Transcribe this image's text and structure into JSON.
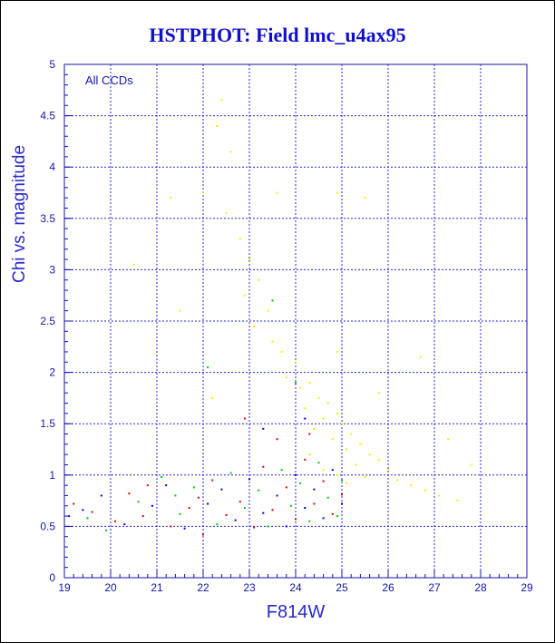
{
  "chart_data": {
    "type": "scatter",
    "title": "HSTPHOT: Field lmc_u4ax95",
    "xlabel": "F814W",
    "ylabel": "Chi vs. magnitude",
    "annotation": "All CCDs",
    "xlim": [
      19,
      29
    ],
    "ylim": [
      0,
      5
    ],
    "xticks": [
      "19",
      "20",
      "21",
      "22",
      "23",
      "24",
      "25",
      "26",
      "27",
      "28",
      "29"
    ],
    "yticks": [
      "0",
      "0.5",
      "1",
      "1.5",
      "2",
      "2.5",
      "3",
      "3.5",
      "4",
      "4.5",
      "5"
    ],
    "grid": true,
    "colors": {
      "ccd-red": "#e00000",
      "ccd-green": "#00cc00",
      "ccd-blue": "#0000dd",
      "ccd-yellow": "#f2f200"
    },
    "series": [
      {
        "color": "ccd-red",
        "points": [
          [
            19.2,
            0.72
          ],
          [
            19.6,
            0.64
          ],
          [
            20.1,
            0.55
          ],
          [
            20.4,
            0.82
          ],
          [
            20.8,
            0.9
          ],
          [
            21.3,
            0.5
          ],
          [
            21.7,
            0.68
          ],
          [
            22.0,
            0.42
          ],
          [
            22.2,
            0.95
          ],
          [
            22.5,
            0.61
          ],
          [
            22.8,
            0.74
          ],
          [
            23.1,
            0.49
          ],
          [
            23.3,
            1.08
          ],
          [
            23.5,
            0.66
          ],
          [
            23.8,
            0.88
          ],
          [
            24.0,
            0.57
          ],
          [
            24.2,
            1.15
          ],
          [
            24.4,
            0.72
          ],
          [
            24.6,
            0.94
          ],
          [
            24.8,
            0.62
          ],
          [
            25.0,
            0.81
          ],
          [
            22.9,
            1.55
          ],
          [
            23.6,
            1.35
          ],
          [
            24.3,
            1.4
          ],
          [
            21.9,
            0.78
          ],
          [
            20.7,
            0.6
          ]
        ]
      },
      {
        "color": "ccd-green",
        "points": [
          [
            19.5,
            0.58
          ],
          [
            19.9,
            0.46
          ],
          [
            20.6,
            0.74
          ],
          [
            21.1,
            0.98
          ],
          [
            21.5,
            0.62
          ],
          [
            21.8,
            0.88
          ],
          [
            22.3,
            0.52
          ],
          [
            22.6,
            1.02
          ],
          [
            22.9,
            0.68
          ],
          [
            23.2,
            0.85
          ],
          [
            23.4,
            0.5
          ],
          [
            23.7,
            1.05
          ],
          [
            23.9,
            0.7
          ],
          [
            24.1,
            0.92
          ],
          [
            24.3,
            0.55
          ],
          [
            24.5,
            1.12
          ],
          [
            24.7,
            0.78
          ],
          [
            24.9,
            0.6
          ],
          [
            25.0,
            0.95
          ],
          [
            23.5,
            2.7
          ],
          [
            22.1,
            2.05
          ],
          [
            24.0,
            1.9
          ],
          [
            21.4,
            0.8
          ]
        ]
      },
      {
        "color": "ccd-blue",
        "points": [
          [
            19.4,
            0.66
          ],
          [
            19.8,
            0.8
          ],
          [
            20.3,
            0.52
          ],
          [
            20.9,
            0.7
          ],
          [
            21.2,
            0.9
          ],
          [
            21.6,
            0.48
          ],
          [
            22.1,
            0.72
          ],
          [
            22.4,
            0.86
          ],
          [
            22.7,
            0.56
          ],
          [
            23.0,
            0.96
          ],
          [
            23.3,
            0.63
          ],
          [
            23.6,
            0.8
          ],
          [
            23.8,
            0.5
          ],
          [
            24.0,
            1.0
          ],
          [
            24.2,
            0.68
          ],
          [
            24.4,
            0.86
          ],
          [
            24.6,
            0.58
          ],
          [
            24.8,
            1.05
          ],
          [
            25.0,
            0.72
          ],
          [
            24.2,
            1.55
          ],
          [
            23.3,
            1.45
          ],
          [
            19.1,
            0.6
          ]
        ]
      },
      {
        "color": "ccd-yellow",
        "points": [
          [
            22.4,
            4.65
          ],
          [
            22.3,
            4.4
          ],
          [
            22.6,
            4.15
          ],
          [
            21.3,
            3.7
          ],
          [
            22.0,
            3.75
          ],
          [
            23.6,
            3.75
          ],
          [
            22.5,
            3.55
          ],
          [
            22.8,
            3.3
          ],
          [
            23.0,
            3.1
          ],
          [
            23.2,
            2.9
          ],
          [
            22.9,
            2.75
          ],
          [
            23.4,
            2.6
          ],
          [
            23.1,
            2.45
          ],
          [
            23.5,
            2.3
          ],
          [
            23.7,
            2.2
          ],
          [
            24.0,
            2.1
          ],
          [
            23.8,
            1.95
          ],
          [
            24.3,
            1.9
          ],
          [
            24.1,
            1.85
          ],
          [
            24.5,
            1.75
          ],
          [
            24.2,
            1.65
          ],
          [
            24.7,
            1.7
          ],
          [
            24.6,
            1.55
          ],
          [
            24.9,
            1.6
          ],
          [
            24.4,
            1.45
          ],
          [
            25.0,
            1.5
          ],
          [
            24.8,
            1.35
          ],
          [
            25.2,
            1.4
          ],
          [
            25.4,
            1.3
          ],
          [
            25.1,
            1.25
          ],
          [
            25.6,
            1.2
          ],
          [
            25.3,
            1.1
          ],
          [
            25.8,
            1.15
          ],
          [
            26.0,
            1.05
          ],
          [
            25.5,
            0.98
          ],
          [
            26.2,
            0.95
          ],
          [
            26.5,
            0.9
          ],
          [
            26.8,
            0.85
          ],
          [
            27.1,
            0.8
          ],
          [
            27.5,
            0.75
          ],
          [
            27.8,
            1.1
          ],
          [
            27.3,
            1.35
          ],
          [
            26.7,
            2.15
          ],
          [
            25.8,
            1.8
          ],
          [
            24.9,
            2.2
          ],
          [
            25.5,
            3.7
          ],
          [
            24.9,
            3.75
          ],
          [
            20.5,
            3.05
          ],
          [
            21.5,
            2.6
          ],
          [
            22.2,
            1.75
          ],
          [
            24.3,
            1.2
          ],
          [
            24.6,
            1.05
          ],
          [
            24.9,
            1.0
          ],
          [
            25.1,
            0.92
          ]
        ]
      }
    ]
  }
}
